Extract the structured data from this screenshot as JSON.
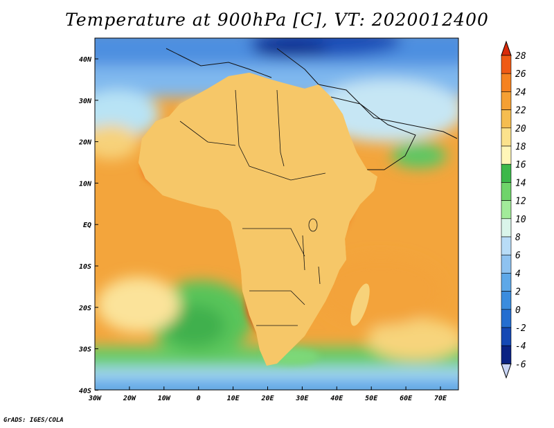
{
  "title": "Temperature at 900hPa [C], VT: 2020012400",
  "credit": "GrADS: IGES/COLA",
  "map": {
    "lon_range": [
      -30,
      75
    ],
    "lat_range": [
      -40,
      45
    ],
    "lon_ticks": [
      "30W",
      "20W",
      "10W",
      "0",
      "10E",
      "20E",
      "30E",
      "40E",
      "50E",
      "60E",
      "70E"
    ],
    "lat_ticks": [
      "40N",
      "30N",
      "20N",
      "10N",
      "EQ",
      "10S",
      "20S",
      "30S",
      "40S"
    ],
    "ocean_color": "#f3a33a",
    "land_color": "#f5c062"
  },
  "colorbar": {
    "labels": [
      "28",
      "26",
      "24",
      "22",
      "20",
      "18",
      "16",
      "14",
      "12",
      "10",
      "8",
      "6",
      "4",
      "2",
      "0",
      "-2",
      "-4",
      "-6"
    ],
    "colors": [
      "#d92a0a",
      "#ef5a14",
      "#f58220",
      "#f5a034",
      "#f5bd50",
      "#fbe28c",
      "#fff6b8",
      "#3cb84a",
      "#6fd46a",
      "#a2eb9a",
      "#daf5ea",
      "#b8dcf7",
      "#8ec2f0",
      "#5ea8e8",
      "#3a8cde",
      "#246ed0",
      "#1448b4",
      "#0a2283",
      "#c8d4f5"
    ]
  }
}
